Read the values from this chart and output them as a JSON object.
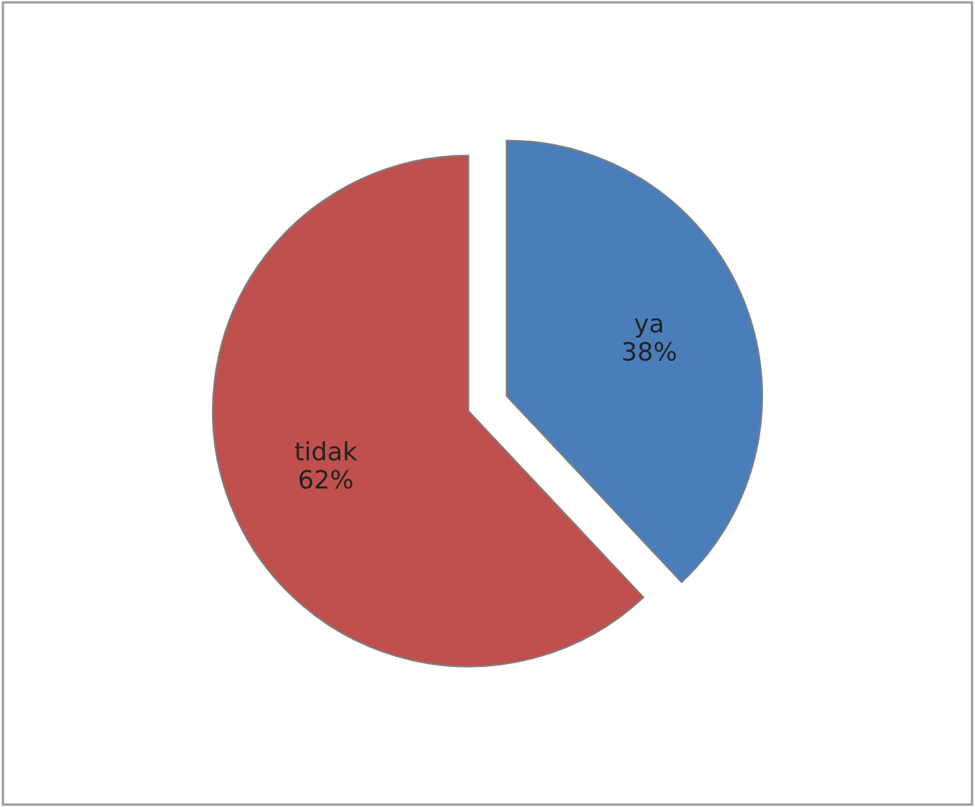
{
  "chart_data": {
    "type": "pie",
    "categories": [
      "ya",
      "tidak"
    ],
    "values": [
      38,
      62
    ],
    "colors": [
      "#4a7ebb",
      "#c0504d"
    ],
    "value_labels": [
      "38%",
      "62%"
    ],
    "legend": false
  }
}
